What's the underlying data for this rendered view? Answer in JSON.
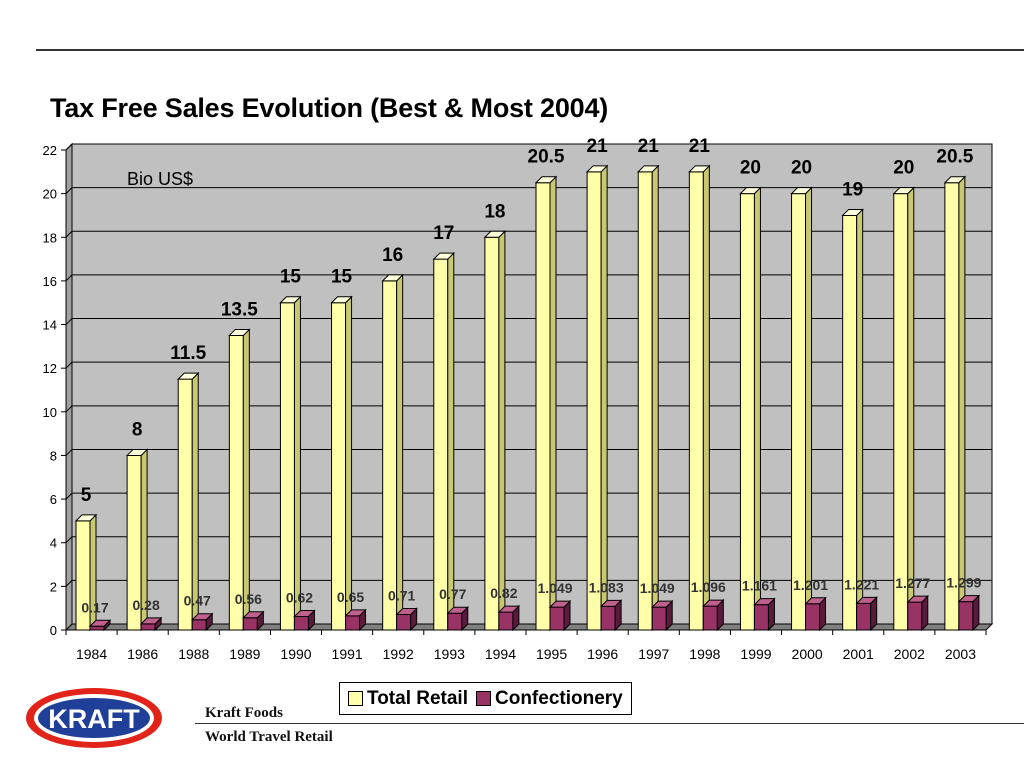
{
  "slide": {
    "title": "Tax Free Sales Evolution (Best & Most 2004)"
  },
  "brand": {
    "logo_text": "KRAFT",
    "logo_red": "#e2231a",
    "logo_blue": "#1f3f99"
  },
  "footer": {
    "line1": "Kraft Foods",
    "line2": "World Travel Retail"
  },
  "colors": {
    "total_retail": "#ffffaa",
    "total_retail_side": "#c8c872",
    "total_retail_top": "#ffffdd",
    "confectionery": "#993366",
    "confectionery_side": "#5a1a3c",
    "confectionery_top": "#c0608c"
  },
  "chart_data": {
    "type": "bar",
    "unit_label": "Bio US$",
    "categories": [
      "1984",
      "1986",
      "1988",
      "1989",
      "1990",
      "1991",
      "1992",
      "1993",
      "1994",
      "1995",
      "1996",
      "1997",
      "1998",
      "1999",
      "2000",
      "2001",
      "2002",
      "2003"
    ],
    "series": [
      {
        "name": "Total Retail",
        "values": [
          5,
          8,
          11.5,
          13.5,
          15,
          15,
          16,
          17,
          18,
          20.5,
          21,
          21,
          21,
          20,
          20,
          19,
          20,
          20.5
        ],
        "labels": [
          "5",
          "8",
          "11.5",
          "13.5",
          "15",
          "15",
          "16",
          "17",
          "18",
          "20.5",
          "21",
          "21",
          "21",
          "20",
          "20",
          "19",
          "20",
          "20.5"
        ]
      },
      {
        "name": "Confectionery",
        "values": [
          0.17,
          0.28,
          0.47,
          0.56,
          0.62,
          0.65,
          0.71,
          0.77,
          0.82,
          1.049,
          1.083,
          1.049,
          1.096,
          1.161,
          1.201,
          1.221,
          1.277,
          1.299
        ],
        "labels": [
          "0.17",
          "0.28",
          "0.47",
          "0.56",
          "0.62",
          "0.65",
          "0.71",
          "0.77",
          "0.82",
          "1.049",
          "1.083",
          "1.049",
          "1.096",
          "1.161",
          "1.201",
          "1.221",
          "1.277",
          "1.299"
        ]
      }
    ],
    "y_ticks": [
      "0",
      "2",
      "4",
      "6",
      "8",
      "10",
      "12",
      "14",
      "16",
      "18",
      "20",
      "22"
    ],
    "ylim": [
      0,
      22
    ],
    "grid": true,
    "legend_position": "bottom"
  }
}
